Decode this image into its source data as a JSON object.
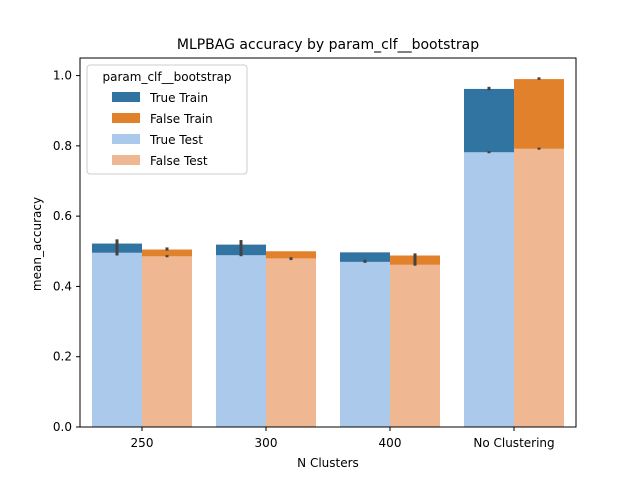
{
  "chart_data": {
    "type": "bar",
    "title": "MLPBAG accuracy by param_clf__bootstrap",
    "xlabel": "N Clusters",
    "ylabel": "mean_accuracy",
    "categories": [
      "250",
      "300",
      "400",
      "No Clustering"
    ],
    "ylim": [
      0,
      1.05
    ],
    "yticks": [
      "0.0",
      "0.2",
      "0.4",
      "0.6",
      "0.8",
      "1.0"
    ],
    "grid": false,
    "legend": {
      "title": "param_clf__bootstrap",
      "placement": "top-left",
      "entries": [
        "True Train",
        "False Train",
        "True Test",
        "False Test"
      ]
    },
    "series": [
      {
        "name": "True Train",
        "group": "True",
        "layer": "train",
        "color": "#3274a1",
        "values": [
          0.522,
          0.519,
          0.497,
          0.962
        ],
        "err_low": [
          0.488,
          0.49,
          0.471,
          0.958
        ],
        "err_high": [
          0.534,
          0.532,
          0.476,
          0.968
        ]
      },
      {
        "name": "False Train",
        "group": "False",
        "layer": "train",
        "color": "#e1812c",
        "values": [
          0.505,
          0.5,
          0.488,
          0.99
        ],
        "err_low": [
          0.502,
          0.475,
          0.46,
          0.988
        ],
        "err_high": [
          0.511,
          0.481,
          0.494,
          0.995
        ]
      },
      {
        "name": "True Test",
        "group": "True",
        "layer": "test",
        "color": "#abc9ea",
        "values": [
          0.496,
          0.489,
          0.47,
          0.782
        ],
        "err_low": [
          0.492,
          0.486,
          0.467,
          0.779
        ],
        "err_high": [
          0.5,
          0.492,
          0.473,
          0.785
        ]
      },
      {
        "name": "False Test",
        "group": "False",
        "layer": "test",
        "color": "#efb792",
        "values": [
          0.486,
          0.48,
          0.462,
          0.792
        ],
        "err_low": [
          0.483,
          0.477,
          0.459,
          0.789
        ],
        "err_high": [
          0.489,
          0.483,
          0.465,
          0.795
        ]
      }
    ]
  }
}
